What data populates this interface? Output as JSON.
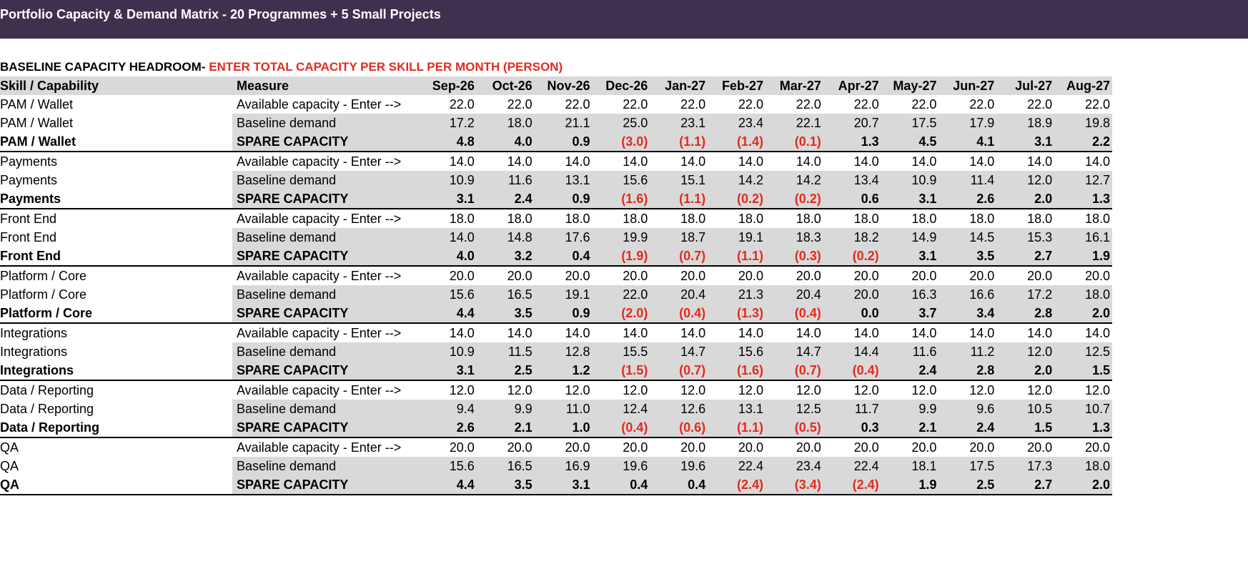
{
  "title": "Portfolio Capacity & Demand Matrix - 20 Programmes + 5 Small Projects",
  "section": {
    "label": "BASELINE CAPACITY HEADROOM-",
    "instruction": "ENTER TOTAL CAPACITY PER SKILL PER MONTH (PERSON)"
  },
  "columns": {
    "skill": "Skill / Capability",
    "measure": "Measure",
    "months": [
      "Sep-26",
      "Oct-26",
      "Nov-26",
      "Dec-26",
      "Jan-27",
      "Feb-27",
      "Mar-27",
      "Apr-27",
      "May-27",
      "Jun-27",
      "Jul-27",
      "Aug-27"
    ]
  },
  "measure_labels": {
    "available": "Available capacity - Enter -->",
    "baseline": "Baseline demand",
    "spare": "SPARE CAPACITY"
  },
  "colors": {
    "banner": "#40304f",
    "negative": "#e22b1e",
    "shade": "#d9d9d9"
  },
  "groups": [
    {
      "skill": "PAM / Wallet",
      "available": [
        "22.0",
        "22.0",
        "22.0",
        "22.0",
        "22.0",
        "22.0",
        "22.0",
        "22.0",
        "22.0",
        "22.0",
        "22.0",
        "22.0"
      ],
      "baseline": [
        "17.2",
        "18.0",
        "21.1",
        "25.0",
        "23.1",
        "23.4",
        "22.1",
        "20.7",
        "17.5",
        "17.9",
        "18.9",
        "19.8"
      ],
      "spare": [
        "4.8",
        "4.0",
        "0.9",
        "(3.0)",
        "(1.1)",
        "(1.4)",
        "(0.1)",
        "1.3",
        "4.5",
        "4.1",
        "3.1",
        "2.2"
      ]
    },
    {
      "skill": "Payments",
      "available": [
        "14.0",
        "14.0",
        "14.0",
        "14.0",
        "14.0",
        "14.0",
        "14.0",
        "14.0",
        "14.0",
        "14.0",
        "14.0",
        "14.0"
      ],
      "baseline": [
        "10.9",
        "11.6",
        "13.1",
        "15.6",
        "15.1",
        "14.2",
        "14.2",
        "13.4",
        "10.9",
        "11.4",
        "12.0",
        "12.7"
      ],
      "spare": [
        "3.1",
        "2.4",
        "0.9",
        "(1.6)",
        "(1.1)",
        "(0.2)",
        "(0.2)",
        "0.6",
        "3.1",
        "2.6",
        "2.0",
        "1.3"
      ]
    },
    {
      "skill": "Front End",
      "available": [
        "18.0",
        "18.0",
        "18.0",
        "18.0",
        "18.0",
        "18.0",
        "18.0",
        "18.0",
        "18.0",
        "18.0",
        "18.0",
        "18.0"
      ],
      "baseline": [
        "14.0",
        "14.8",
        "17.6",
        "19.9",
        "18.7",
        "19.1",
        "18.3",
        "18.2",
        "14.9",
        "14.5",
        "15.3",
        "16.1"
      ],
      "spare": [
        "4.0",
        "3.2",
        "0.4",
        "(1.9)",
        "(0.7)",
        "(1.1)",
        "(0.3)",
        "(0.2)",
        "3.1",
        "3.5",
        "2.7",
        "1.9"
      ]
    },
    {
      "skill": "Platform / Core",
      "available": [
        "20.0",
        "20.0",
        "20.0",
        "20.0",
        "20.0",
        "20.0",
        "20.0",
        "20.0",
        "20.0",
        "20.0",
        "20.0",
        "20.0"
      ],
      "baseline": [
        "15.6",
        "16.5",
        "19.1",
        "22.0",
        "20.4",
        "21.3",
        "20.4",
        "20.0",
        "16.3",
        "16.6",
        "17.2",
        "18.0"
      ],
      "spare": [
        "4.4",
        "3.5",
        "0.9",
        "(2.0)",
        "(0.4)",
        "(1.3)",
        "(0.4)",
        "0.0",
        "3.7",
        "3.4",
        "2.8",
        "2.0"
      ]
    },
    {
      "skill": "Integrations",
      "available": [
        "14.0",
        "14.0",
        "14.0",
        "14.0",
        "14.0",
        "14.0",
        "14.0",
        "14.0",
        "14.0",
        "14.0",
        "14.0",
        "14.0"
      ],
      "baseline": [
        "10.9",
        "11.5",
        "12.8",
        "15.5",
        "14.7",
        "15.6",
        "14.7",
        "14.4",
        "11.6",
        "11.2",
        "12.0",
        "12.5"
      ],
      "spare": [
        "3.1",
        "2.5",
        "1.2",
        "(1.5)",
        "(0.7)",
        "(1.6)",
        "(0.7)",
        "(0.4)",
        "2.4",
        "2.8",
        "2.0",
        "1.5"
      ]
    },
    {
      "skill": "Data / Reporting",
      "available": [
        "12.0",
        "12.0",
        "12.0",
        "12.0",
        "12.0",
        "12.0",
        "12.0",
        "12.0",
        "12.0",
        "12.0",
        "12.0",
        "12.0"
      ],
      "baseline": [
        "9.4",
        "9.9",
        "11.0",
        "12.4",
        "12.6",
        "13.1",
        "12.5",
        "11.7",
        "9.9",
        "9.6",
        "10.5",
        "10.7"
      ],
      "spare": [
        "2.6",
        "2.1",
        "1.0",
        "(0.4)",
        "(0.6)",
        "(1.1)",
        "(0.5)",
        "0.3",
        "2.1",
        "2.4",
        "1.5",
        "1.3"
      ]
    },
    {
      "skill": "QA",
      "available": [
        "20.0",
        "20.0",
        "20.0",
        "20.0",
        "20.0",
        "20.0",
        "20.0",
        "20.0",
        "20.0",
        "20.0",
        "20.0",
        "20.0"
      ],
      "baseline": [
        "15.6",
        "16.5",
        "16.9",
        "19.6",
        "19.6",
        "22.4",
        "23.4",
        "22.4",
        "18.1",
        "17.5",
        "17.3",
        "18.0"
      ],
      "spare": [
        "4.4",
        "3.5",
        "3.1",
        "0.4",
        "0.4",
        "(2.4)",
        "(3.4)",
        "(2.4)",
        "1.9",
        "2.5",
        "2.7",
        "2.0"
      ]
    }
  ]
}
